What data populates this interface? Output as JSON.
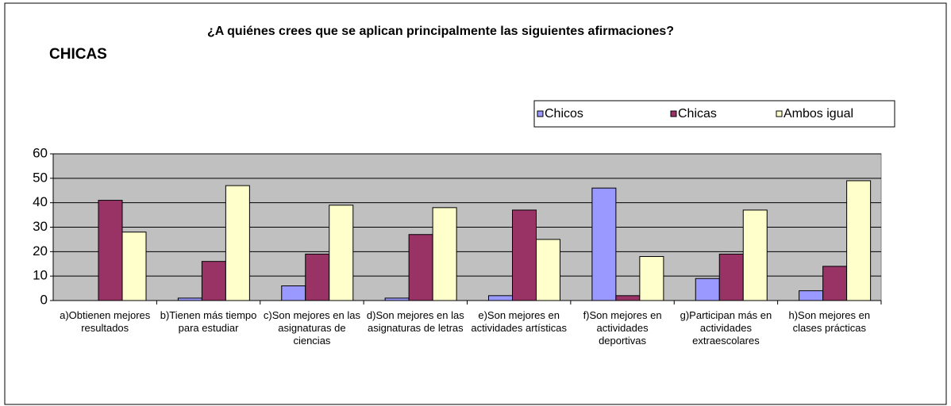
{
  "chart_data": {
    "type": "bar",
    "title": "¿A quiénes crees que se aplican principalmente las siguientes afirmaciones?",
    "subtitle": "CHICAS",
    "categories": [
      "a)Obtienen mejores resultados",
      "b)Tienen más tiempo para estudiar",
      "c)Son mejores en las asignaturas de ciencias",
      "d)Son mejores en las asignaturas de letras",
      "e)Son mejores en actividades artísticas",
      "f)Son mejores en actividades deportivas",
      "g)Participan más en actividades extraescolares",
      "h)Son mejores en clases prácticas"
    ],
    "series": [
      {
        "name": "Chicos",
        "color": "#9999ff",
        "values": [
          0,
          1,
          6,
          1,
          2,
          46,
          9,
          4
        ]
      },
      {
        "name": "Chicas",
        "color": "#993366",
        "values": [
          41,
          16,
          19,
          27,
          37,
          2,
          19,
          14
        ]
      },
      {
        "name": "Ambos igual",
        "color": "#ffffcc",
        "values": [
          28,
          47,
          39,
          38,
          25,
          18,
          37,
          49
        ]
      }
    ],
    "ylim": [
      0,
      60
    ],
    "yticks": [
      0,
      10,
      20,
      30,
      40,
      50,
      60
    ],
    "grid": true,
    "legend": "top-right"
  }
}
